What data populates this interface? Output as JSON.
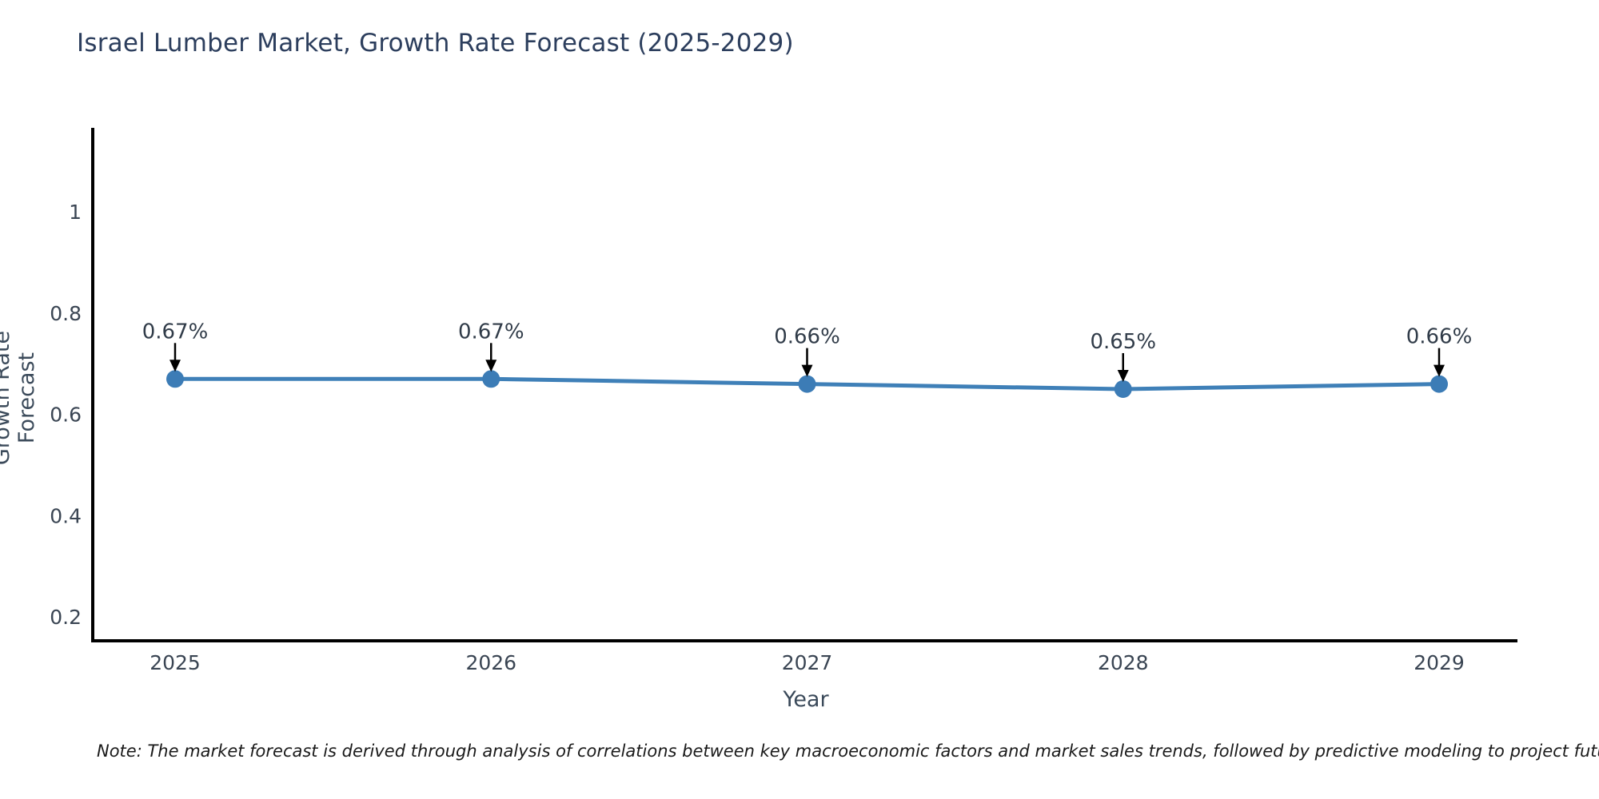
{
  "title": "Israel Lumber Market, Growth Rate Forecast (2025-2029)",
  "footnote": "Note: The market forecast is derived through analysis of correlations between key macroeconomic factors and market sales trends, followed by predictive modeling to project future sales",
  "chart_data": {
    "type": "line",
    "title": "Israel Lumber Market, Growth Rate Forecast (2025-2029)",
    "xlabel": "Year",
    "ylabel": "Growth Rate Forecast",
    "x": [
      2025,
      2026,
      2027,
      2028,
      2029
    ],
    "values": [
      0.67,
      0.67,
      0.66,
      0.65,
      0.66
    ],
    "point_labels": [
      "0.67%",
      "0.67%",
      "0.66%",
      "0.65%",
      "0.66%"
    ],
    "xticks": [
      "2025",
      "2026",
      "2027",
      "2028",
      "2029"
    ],
    "yticks": [
      0.2,
      0.4,
      0.6,
      0.8,
      1
    ],
    "ytick_labels": [
      "0.2",
      "0.4",
      "0.6",
      "0.8",
      "1"
    ],
    "ylim": [
      0.156,
      1.166
    ],
    "grid": false,
    "legend": null,
    "line_color": "#3f80b8",
    "marker_color": "#3c7cb6",
    "axis_color": "#000000",
    "annotation_arrow_color": "#000000"
  }
}
